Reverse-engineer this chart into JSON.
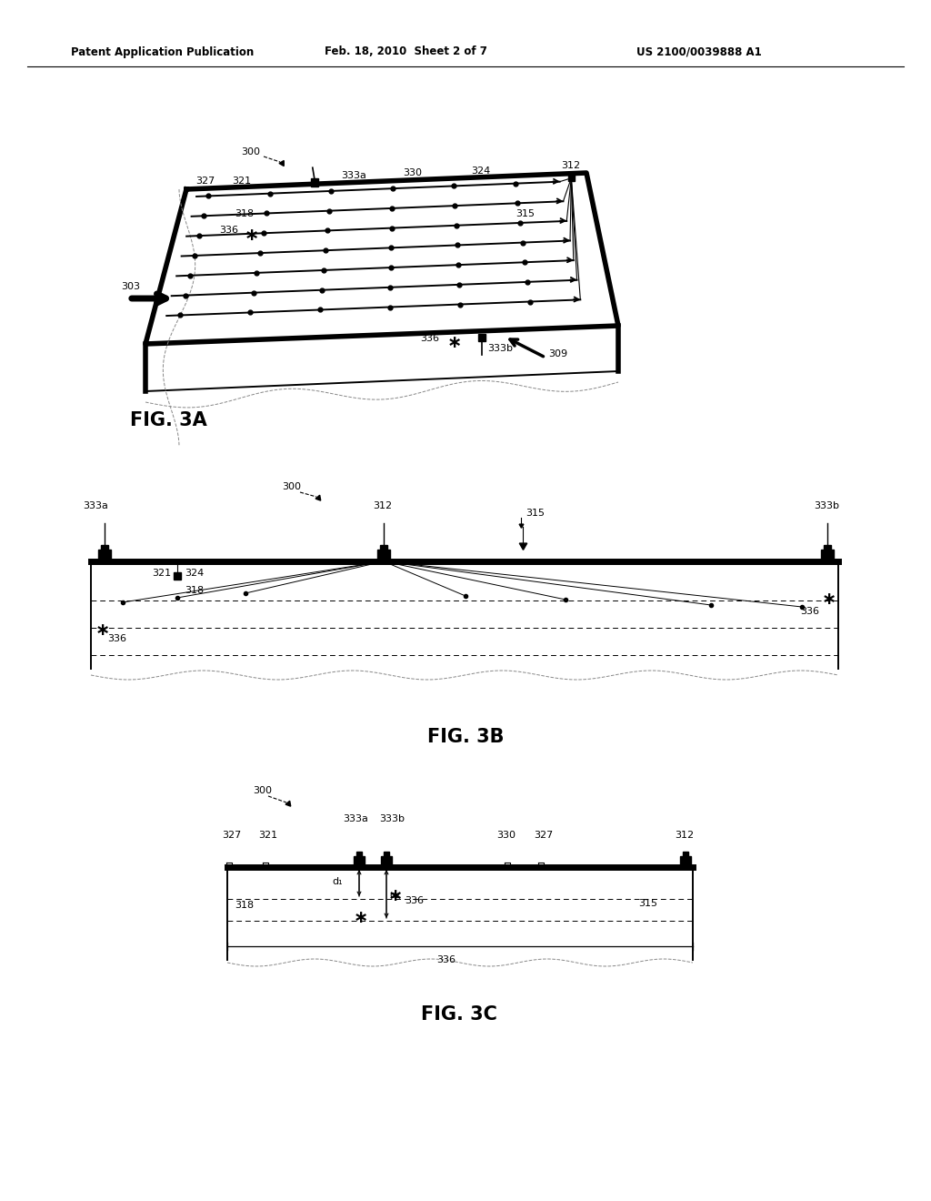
{
  "header_left": "Patent Application Publication",
  "header_mid": "Feb. 18, 2010  Sheet 2 of 7",
  "header_right": "US 2100/0039888 A1",
  "fig3a_label": "FIG. 3A",
  "fig3b_label": "FIG. 3B",
  "fig3c_label": "FIG. 3C",
  "background": "#ffffff",
  "line_color": "#000000"
}
